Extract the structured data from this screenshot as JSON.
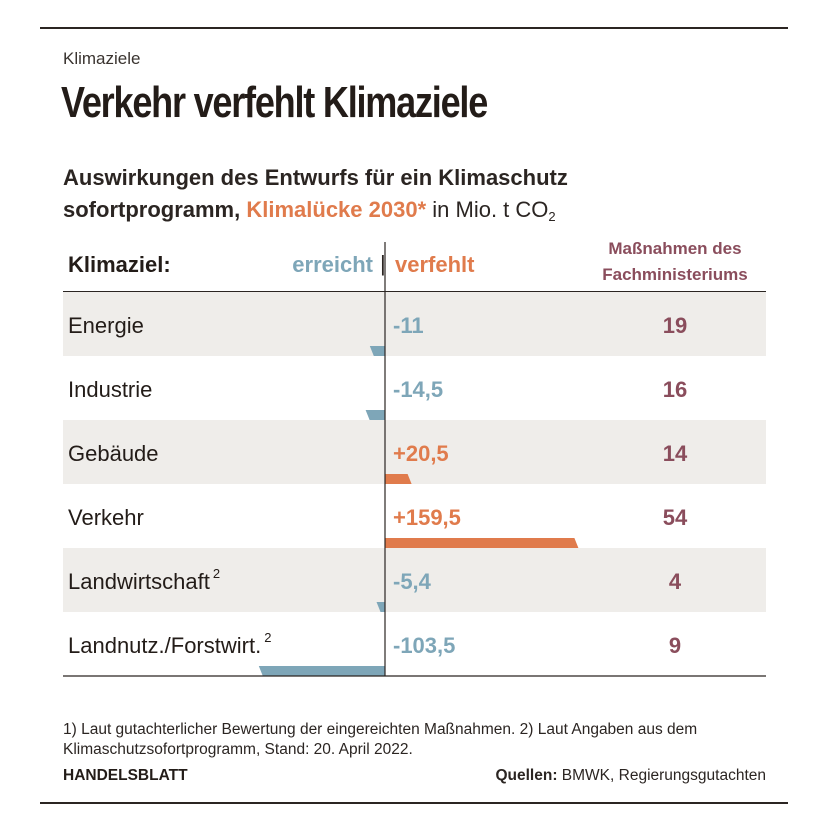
{
  "kicker": "Klimaziele",
  "headline": "Verkehr verfehlt Klimaziele",
  "subtitle": {
    "line1": "Auswirkungen des Entwurfs für ein Klimaschutz",
    "line2_start": "sofortprogramm, ",
    "highlight": "Klimalücke 2030*",
    "unit": " in Mio. t CO",
    "unit_sub": "2"
  },
  "header": {
    "label": "Klimaziel:",
    "reached": "erreicht",
    "separator": "|",
    "missed": "verfehlt",
    "measures_line1": "Maßnahmen des",
    "measures_line2": "Fachministeriums"
  },
  "colors": {
    "reached": "#7ea6b8",
    "missed": "#e07b4c",
    "measures": "#8a4d5c",
    "row_shade": "#efedea"
  },
  "chart_data": {
    "type": "bar",
    "orientation": "horizontal",
    "categories": [
      "Energie",
      "Industrie",
      "Gebäude",
      "Verkehr",
      "Landwirtschaft",
      "Landnutz./Forstwirt."
    ],
    "category_superscripts": [
      "",
      "",
      "",
      "",
      "2",
      "2"
    ],
    "values": [
      -11,
      -14.5,
      20.5,
      159.5,
      -5.4,
      -103.5
    ],
    "value_labels": [
      "-11",
      "-14,5",
      "+20,5",
      "+159,5",
      "-5,4",
      "-103,5"
    ],
    "measures": [
      19,
      16,
      14,
      54,
      4,
      9
    ]
  },
  "footnote": "1) Laut gutachterlicher Bewertung der eingereichten Maßnahmen. 2) Laut Angaben aus dem Klimaschutzsofortprogramm, Stand: 20. April 2022.",
  "brand": "HANDELSBLATT",
  "sources": {
    "label": "Quellen:",
    "text": " BMWK, Regierungsgutachten"
  }
}
